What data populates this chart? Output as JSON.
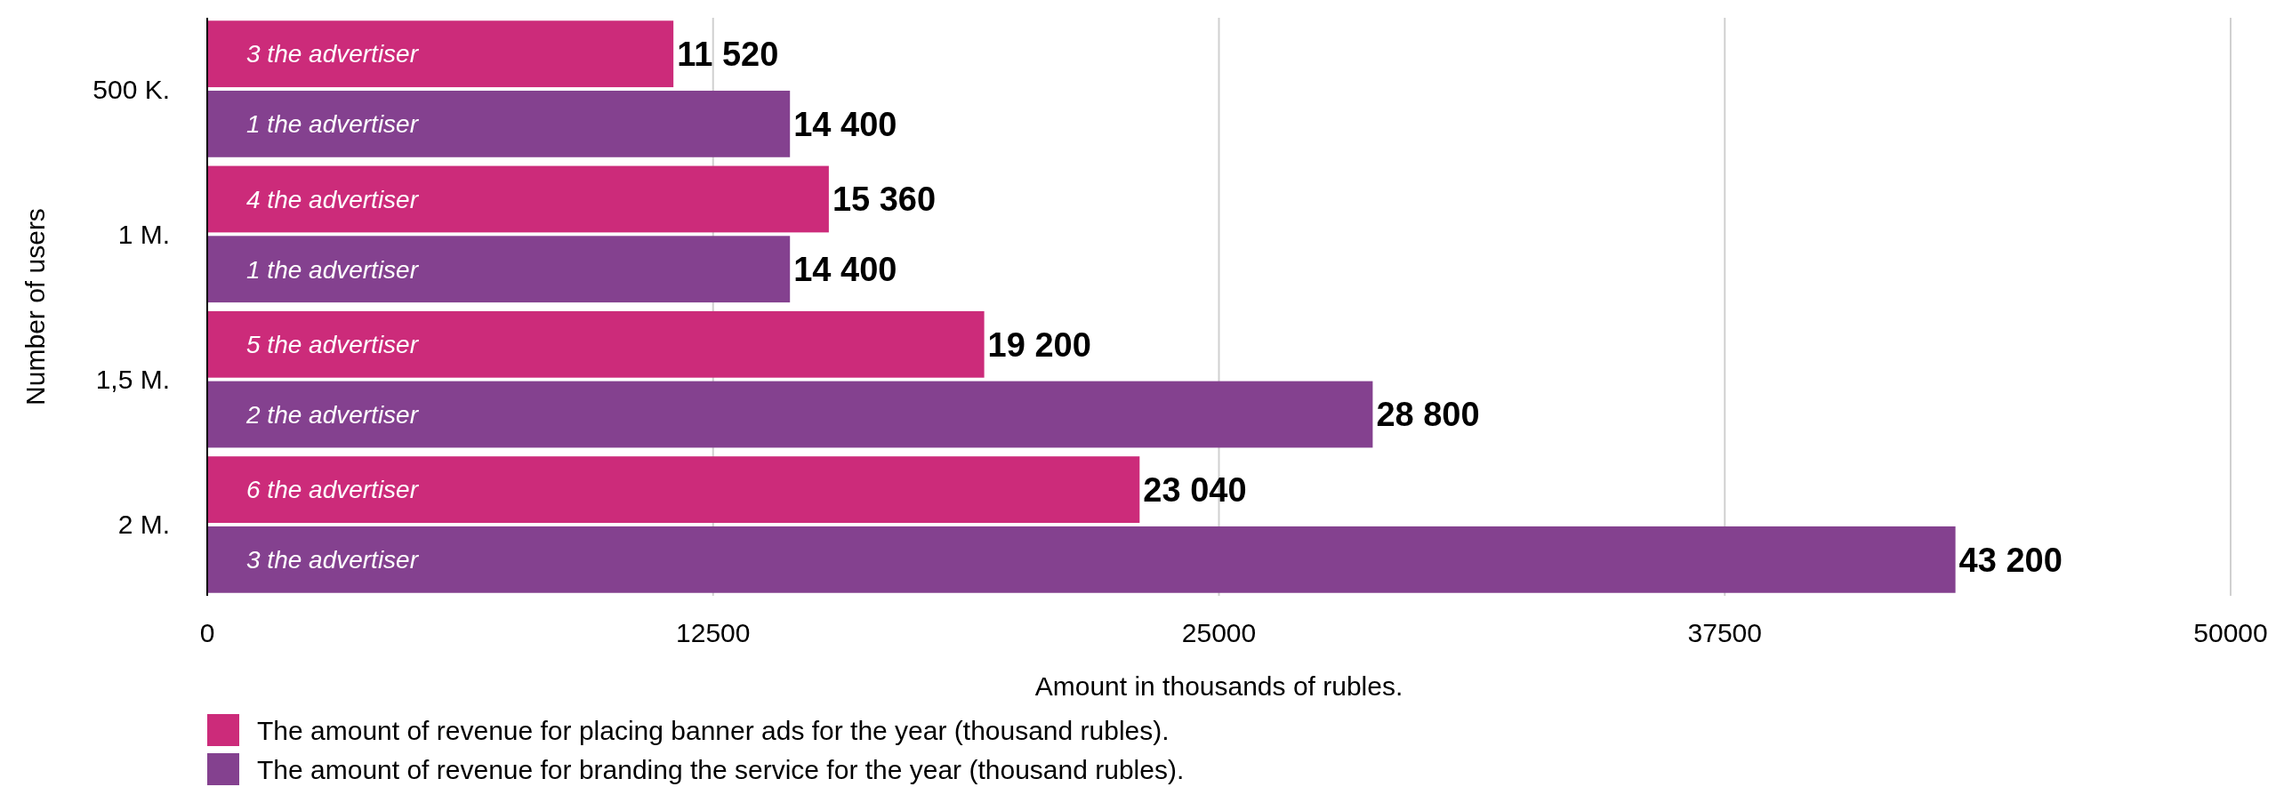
{
  "chart_data": {
    "type": "bar",
    "orientation": "horizontal",
    "ylabel": "Number of users",
    "xlabel": "Amount in thousands of rubles.",
    "categories": [
      "500 K.",
      "1 M.",
      "1,5 M.",
      "2 M."
    ],
    "series": [
      {
        "name": "The amount of revenue for placing banner ads for the year (thousand rubles).",
        "color": "#cc2b7a",
        "values": [
          11520,
          15360,
          19200,
          23040
        ],
        "value_labels": [
          "11 520",
          "15 360",
          "19 200",
          "23 040"
        ]
      },
      {
        "name": "The amount of revenue for branding the service for the year (thousand rubles).",
        "color": "#84418f",
        "values": [
          14400,
          14400,
          28800,
          43200
        ],
        "value_labels": [
          "14 400",
          "14 400",
          "28 800",
          "43 200"
        ]
      }
    ],
    "xlim": [
      0,
      50000
    ],
    "xticks": [
      0,
      12500,
      25000,
      37500,
      50000
    ],
    "grid": "x",
    "legend": "bottom",
    "annotations": [
      {
        "text": "3 the advertiser",
        "y": "500 K."
      },
      {
        "text": "1 the advertiser",
        "y": "500 K."
      },
      {
        "text": "4 the advertiser",
        "y": "1 M."
      },
      {
        "text": "1 the advertiser",
        "y": "1 M."
      },
      {
        "text": "5 the advertiser",
        "y": "1,5 M."
      },
      {
        "text": "2 the advertiser",
        "y": "1,5 M."
      },
      {
        "text": "6 the advertiser",
        "y": "2 M."
      },
      {
        "text": "3 the advertiser",
        "y": "2 M."
      }
    ]
  }
}
